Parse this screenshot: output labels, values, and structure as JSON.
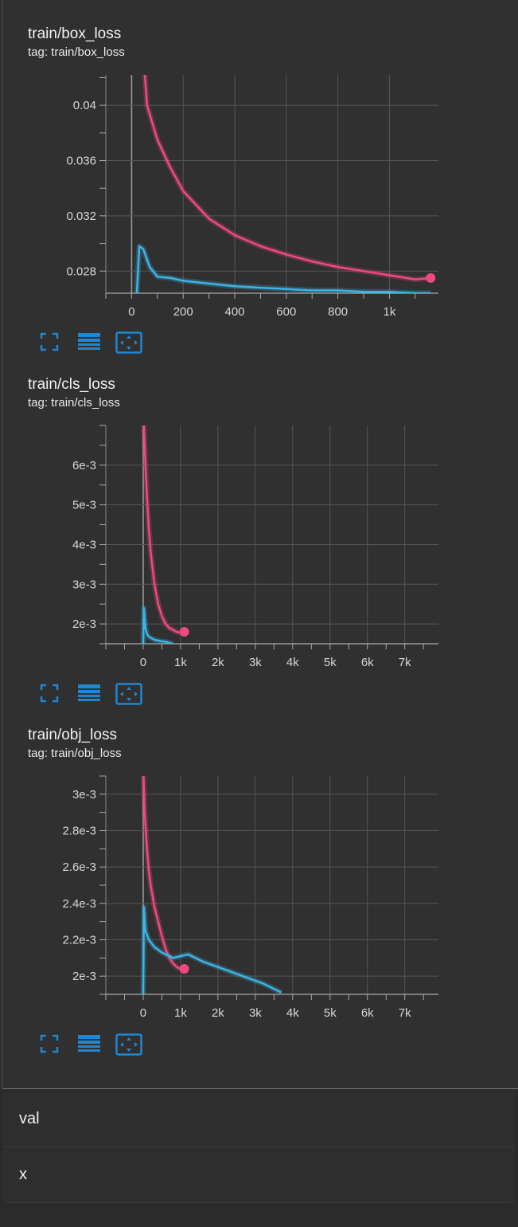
{
  "colors": {
    "train": "#f0497f",
    "val": "#3bb4e6",
    "grid": "#555555",
    "accent": "#1f86d2"
  },
  "toolbar_icons": [
    "fullscreen-icon",
    "data-table-icon",
    "fit-domain-icon"
  ],
  "cards": [
    {
      "title": "train/box_loss",
      "tag": "tag: train/box_loss",
      "chart_data": {
        "type": "line",
        "xlim": [
          -100,
          1190
        ],
        "ylim": [
          0.0264,
          0.0422
        ],
        "xticks": [
          0,
          200,
          400,
          600,
          800,
          1000
        ],
        "xtick_labels": [
          "0",
          "200",
          "400",
          "600",
          "800",
          "1k"
        ],
        "yticks": [
          0.028,
          0.032,
          0.036,
          0.04
        ],
        "ytick_labels": [
          "0.028",
          "0.032",
          "0.036",
          "0.04"
        ],
        "grid": true,
        "series": [
          {
            "color": "#f0497f",
            "end_marker": true,
            "x": [
              40,
              60,
              100,
              150,
              200,
              300,
              400,
              500,
              600,
              700,
              800,
              900,
              1000,
              1100,
              1160
            ],
            "y": [
              0.045,
              0.04,
              0.0375,
              0.0355,
              0.0338,
              0.0318,
              0.0306,
              0.0298,
              0.0292,
              0.0287,
              0.0283,
              0.028,
              0.0277,
              0.0274,
              0.0275
            ]
          },
          {
            "color": "#3bb4e6",
            "end_marker": false,
            "x": [
              20,
              30,
              45,
              70,
              100,
              150,
              200,
              300,
              400,
              500,
              600,
              700,
              800,
              900,
              1000,
              1100,
              1160
            ],
            "y": [
              0.0264,
              0.0298,
              0.0296,
              0.0283,
              0.0276,
              0.0275,
              0.0273,
              0.0271,
              0.0269,
              0.0268,
              0.0267,
              0.0266,
              0.0266,
              0.0265,
              0.0265,
              0.0264,
              0.0264
            ]
          }
        ]
      }
    },
    {
      "title": "train/cls_loss",
      "tag": "tag: train/cls_loss",
      "chart_data": {
        "type": "line",
        "xlim": [
          -1000,
          7900
        ],
        "ylim": [
          0.0015,
          0.007
        ],
        "xticks": [
          0,
          1000,
          2000,
          3000,
          4000,
          5000,
          6000,
          7000
        ],
        "xtick_labels": [
          "0",
          "1k",
          "2k",
          "3k",
          "4k",
          "5k",
          "6k",
          "7k"
        ],
        "yticks": [
          0.002,
          0.003,
          0.004,
          0.005,
          0.006
        ],
        "ytick_labels": [
          "2e-3",
          "3e-3",
          "4e-3",
          "5e-3",
          "6e-3"
        ],
        "grid": true,
        "series": [
          {
            "color": "#f0497f",
            "end_marker": true,
            "x": [
              20,
              60,
              100,
              150,
              200,
              300,
              400,
              500,
              600,
              700,
              800,
              900,
              1000,
              1100
            ],
            "y": [
              0.007,
              0.006,
              0.0052,
              0.0044,
              0.0038,
              0.003,
              0.0025,
              0.0022,
              0.002,
              0.0019,
              0.00185,
              0.0018,
              0.00178,
              0.0018
            ]
          },
          {
            "color": "#3bb4e6",
            "end_marker": false,
            "x": [
              0,
              20,
              60,
              100,
              150,
              200,
              300,
              400,
              500,
              600,
              700,
              800
            ],
            "y": [
              0.0015,
              0.0024,
              0.0019,
              0.00175,
              0.00168,
              0.00165,
              0.0016,
              0.00158,
              0.00156,
              0.00155,
              0.00152,
              0.0015
            ]
          }
        ]
      }
    },
    {
      "title": "train/obj_loss",
      "tag": "tag: train/obj_loss",
      "chart_data": {
        "type": "line",
        "xlim": [
          -1000,
          7900
        ],
        "ylim": [
          0.0019,
          0.0031
        ],
        "xticks": [
          0,
          1000,
          2000,
          3000,
          4000,
          5000,
          6000,
          7000
        ],
        "xtick_labels": [
          "0",
          "1k",
          "2k",
          "3k",
          "4k",
          "5k",
          "6k",
          "7k"
        ],
        "yticks": [
          0.002,
          0.0022,
          0.0024,
          0.0026,
          0.0028,
          0.003
        ],
        "ytick_labels": [
          "2e-3",
          "2.2e-3",
          "2.4e-3",
          "2.6e-3",
          "2.8e-3",
          "3e-3"
        ],
        "grid": true,
        "series": [
          {
            "color": "#f0497f",
            "end_marker": true,
            "x": [
              10,
              40,
              100,
              150,
              200,
              300,
              400,
              500,
              600,
              700,
              800,
              900,
              1000,
              1100
            ],
            "y": [
              0.0031,
              0.0029,
              0.0027,
              0.00258,
              0.0025,
              0.00238,
              0.0023,
              0.00222,
              0.00215,
              0.0021,
              0.00207,
              0.00205,
              0.00204,
              0.00204
            ]
          },
          {
            "color": "#3bb4e6",
            "end_marker": false,
            "x": [
              0,
              20,
              60,
              150,
              300,
              500,
              800,
              1200,
              1600,
              2000,
              2400,
              2800,
              3200,
              3500,
              3700
            ],
            "y": [
              0.0019,
              0.00238,
              0.00225,
              0.0022,
              0.00216,
              0.00213,
              0.0021,
              0.00212,
              0.00208,
              0.00205,
              0.00202,
              0.00199,
              0.00196,
              0.00193,
              0.00191
            ]
          }
        ]
      }
    }
  ],
  "sections": [
    {
      "label": "val"
    },
    {
      "label": "x"
    }
  ]
}
